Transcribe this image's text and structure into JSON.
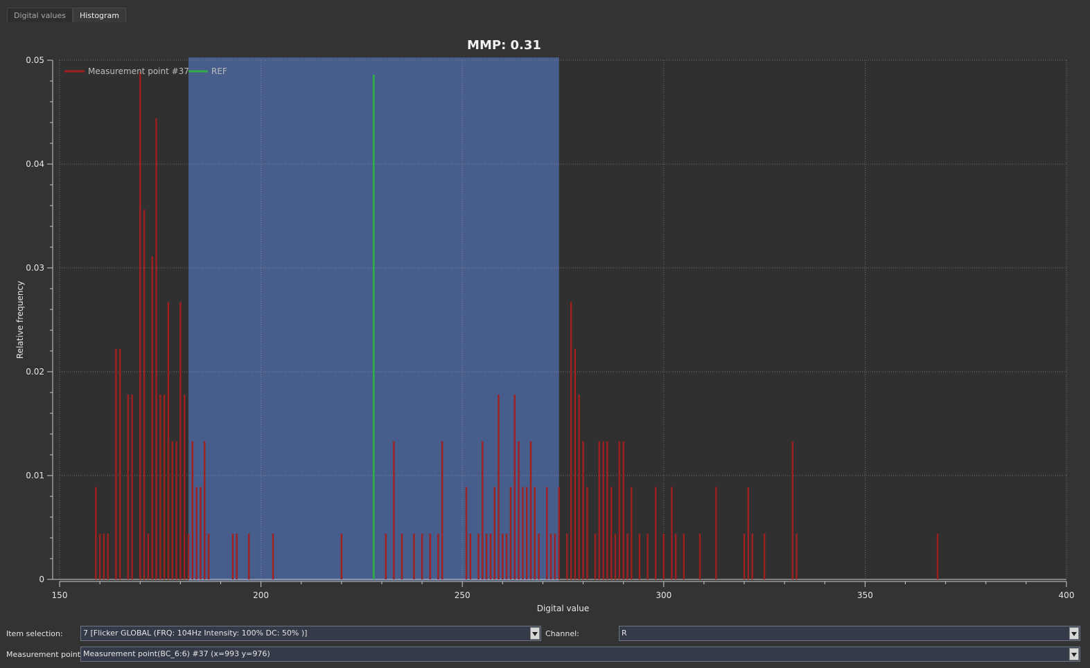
{
  "tabs": [
    {
      "label": "Digital values",
      "active": false
    },
    {
      "label": "Histogram",
      "active": true
    }
  ],
  "chart_data": {
    "type": "bar",
    "title": "MMP: 0.31",
    "xlabel": "Digital value",
    "ylabel": "Relative frequency",
    "xlim": [
      150,
      400
    ],
    "ylim": [
      0,
      0.05
    ],
    "x_ticks": [
      "150",
      "200",
      "250",
      "300",
      "350",
      "400"
    ],
    "y_ticks": [
      "0",
      "0.01",
      "0.02",
      "0.03",
      "0.04",
      "0.05"
    ],
    "grid": true,
    "legend_position": "top-left",
    "highlight_range": [
      182,
      274
    ],
    "series": [
      {
        "name": "Measurement point #37",
        "color": "#a02020",
        "points": [
          [
            159,
            0.0089
          ],
          [
            160,
            0.0044
          ],
          [
            161,
            0.0044
          ],
          [
            162,
            0.0044
          ],
          [
            164,
            0.0222
          ],
          [
            165,
            0.0222
          ],
          [
            167,
            0.0178
          ],
          [
            168,
            0.0178
          ],
          [
            170,
            0.0489
          ],
          [
            171,
            0.0356
          ],
          [
            172,
            0.0044
          ],
          [
            173,
            0.0311
          ],
          [
            174,
            0.0444
          ],
          [
            175,
            0.0178
          ],
          [
            176,
            0.0178
          ],
          [
            177,
            0.0267
          ],
          [
            178,
            0.0133
          ],
          [
            179,
            0.0133
          ],
          [
            180,
            0.0267
          ],
          [
            181,
            0.0178
          ],
          [
            182,
            0.0044
          ],
          [
            183,
            0.0133
          ],
          [
            184,
            0.0089
          ],
          [
            185,
            0.0089
          ],
          [
            186,
            0.0133
          ],
          [
            187,
            0.0044
          ],
          [
            193,
            0.0044
          ],
          [
            194,
            0.0044
          ],
          [
            197,
            0.0044
          ],
          [
            203,
            0.0044
          ],
          [
            220,
            0.0044
          ],
          [
            231,
            0.0044
          ],
          [
            233,
            0.0133
          ],
          [
            235,
            0.0044
          ],
          [
            238,
            0.0044
          ],
          [
            240,
            0.0044
          ],
          [
            242,
            0.0044
          ],
          [
            244,
            0.0044
          ],
          [
            245,
            0.0133
          ],
          [
            251,
            0.0089
          ],
          [
            252,
            0.0044
          ],
          [
            254,
            0.0044
          ],
          [
            255,
            0.0133
          ],
          [
            256,
            0.0044
          ],
          [
            257,
            0.0044
          ],
          [
            258,
            0.0089
          ],
          [
            259,
            0.0178
          ],
          [
            260,
            0.0044
          ],
          [
            261,
            0.0044
          ],
          [
            262,
            0.0089
          ],
          [
            263,
            0.0178
          ],
          [
            264,
            0.0133
          ],
          [
            265,
            0.0089
          ],
          [
            266,
            0.0089
          ],
          [
            267,
            0.0133
          ],
          [
            268,
            0.0089
          ],
          [
            269,
            0.0044
          ],
          [
            271,
            0.0089
          ],
          [
            272,
            0.0044
          ],
          [
            273,
            0.0044
          ],
          [
            274,
            0.0089
          ],
          [
            276,
            0.0044
          ],
          [
            277,
            0.0267
          ],
          [
            278,
            0.0222
          ],
          [
            279,
            0.0178
          ],
          [
            280,
            0.0133
          ],
          [
            281,
            0.0089
          ],
          [
            283,
            0.0044
          ],
          [
            284,
            0.0133
          ],
          [
            285,
            0.0133
          ],
          [
            286,
            0.0133
          ],
          [
            287,
            0.0089
          ],
          [
            288,
            0.0044
          ],
          [
            289,
            0.0133
          ],
          [
            290,
            0.0133
          ],
          [
            291,
            0.0044
          ],
          [
            292,
            0.0089
          ],
          [
            294,
            0.0044
          ],
          [
            296,
            0.0044
          ],
          [
            298,
            0.0089
          ],
          [
            300,
            0.0044
          ],
          [
            302,
            0.0089
          ],
          [
            303,
            0.0044
          ],
          [
            305,
            0.0044
          ],
          [
            309,
            0.0044
          ],
          [
            313,
            0.0089
          ],
          [
            320,
            0.0044
          ],
          [
            321,
            0.0089
          ],
          [
            322,
            0.0044
          ],
          [
            325,
            0.0044
          ],
          [
            332,
            0.0133
          ],
          [
            333,
            0.0044
          ],
          [
            368,
            0.0044
          ]
        ]
      },
      {
        "name": "REF",
        "color": "#2fae4a",
        "points": [
          [
            228,
            0.0486
          ]
        ]
      }
    ]
  },
  "controls": {
    "item_selection_label": "Item selection:",
    "item_selection_value": "7 [Flicker GLOBAL (FRQ: 104Hz  Intensity: 100% DC: 50% )]",
    "channel_label": "Channel:",
    "channel_value": "R",
    "measurement_point_label": "Measurement point:",
    "measurement_point_value": "Measurement point(BC_6:6) #37 (x=993 y=976)"
  }
}
